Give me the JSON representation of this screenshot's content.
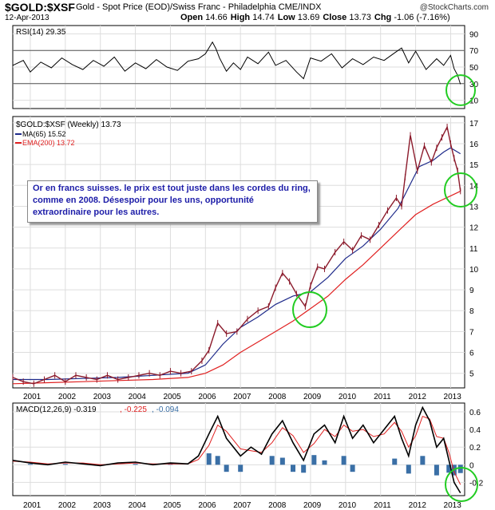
{
  "header": {
    "symbol": "$GOLD:$XSF",
    "description": "Gold - Spot Price (EOD)/Swiss Franc - Philadelphia CME/INDX",
    "date": "12-Apr-2013",
    "brand": "@StockCharts.com",
    "ohlc": [
      {
        "label": "Open",
        "value": "14.66"
      },
      {
        "label": "High",
        "value": "14.74"
      },
      {
        "label": "Low",
        "value": "13.69"
      },
      {
        "label": "Close",
        "value": "13.73"
      },
      {
        "label": "Chg",
        "value": "-1.06 (-7.16%)"
      }
    ]
  },
  "annotation": {
    "text": "Or en francs suisses. le prix est tout juste dans les cordes du ring, comme en 2008. Désespoir pour les uns, opportunité extraordinaire pour les autres."
  },
  "colors": {
    "price": "#8b1a2b",
    "ma": "#1e2a8a",
    "ema": "#e02020",
    "rsi": "#000000",
    "macd_signal": "#e02020",
    "histogram": "#3a6fa6",
    "circle": "#22cc22"
  },
  "chart_data": [
    {
      "type": "line",
      "title": "RSI(14) 29.35",
      "legend": [
        {
          "text": "RSI(14) 29.35"
        }
      ],
      "ylim": [
        0,
        100
      ],
      "y_ticks": [
        10,
        30,
        50,
        70,
        90
      ],
      "reference_lines": [
        30,
        70
      ],
      "series": [
        {
          "x": [
            2000.5,
            2000.8,
            2001.0,
            2001.3,
            2001.6,
            2001.9,
            2002.2,
            2002.5,
            2002.8,
            2003.1,
            2003.4,
            2003.7,
            2004.0,
            2004.3,
            2004.6,
            2004.9,
            2005.2,
            2005.5,
            2005.8,
            2006.0,
            2006.2,
            2006.3,
            2006.4,
            2006.6,
            2006.8,
            2007.0,
            2007.2,
            2007.5,
            2007.8,
            2008.0,
            2008.3,
            2008.6,
            2008.8,
            2009.0,
            2009.3,
            2009.6,
            2009.9,
            2010.2,
            2010.5,
            2010.8,
            2011.1,
            2011.4,
            2011.6,
            2011.8,
            2012.0,
            2012.3,
            2012.6,
            2012.8,
            2013.0,
            2013.1,
            2013.2,
            2013.28
          ],
          "y": [
            52,
            58,
            44,
            56,
            49,
            61,
            53,
            47,
            58,
            51,
            62,
            45,
            55,
            48,
            59,
            50,
            46,
            57,
            60,
            66,
            80,
            72,
            61,
            45,
            55,
            47,
            62,
            54,
            68,
            52,
            58,
            44,
            36,
            61,
            57,
            66,
            49,
            60,
            53,
            62,
            58,
            67,
            73,
            55,
            69,
            47,
            60,
            52,
            64,
            48,
            40,
            29.35
          ]
        }
      ]
    },
    {
      "type": "line",
      "title": "$GOLD:$XSF (Weekly) 13.73",
      "legend": [
        {
          "text": "$GOLD:$XSF (Weekly) 13.73"
        },
        {
          "text": "MA(65) 15.52"
        },
        {
          "text": "EMA(200) 13.72"
        }
      ],
      "ylim": [
        4.3,
        17.3
      ],
      "y_ticks": [
        5,
        6,
        7,
        8,
        9,
        10,
        11,
        12,
        13,
        14,
        15,
        16,
        17
      ],
      "x_ticks": [
        "2001",
        "2002",
        "2003",
        "2004",
        "2005",
        "2006",
        "2007",
        "2008",
        "2009",
        "2010",
        "2011",
        "2012",
        "2013"
      ],
      "series": [
        {
          "x": [
            2000.5,
            2000.8,
            2001.1,
            2001.4,
            2001.7,
            2002.0,
            2002.3,
            2002.6,
            2002.9,
            2003.2,
            2003.5,
            2003.8,
            2004.1,
            2004.4,
            2004.7,
            2005.0,
            2005.3,
            2005.6,
            2005.9,
            2006.1,
            2006.35,
            2006.6,
            2006.9,
            2007.2,
            2007.5,
            2007.8,
            2008.0,
            2008.2,
            2008.4,
            2008.6,
            2008.85,
            2009.0,
            2009.2,
            2009.4,
            2009.7,
            2009.95,
            2010.2,
            2010.45,
            2010.7,
            2010.95,
            2011.2,
            2011.45,
            2011.6,
            2011.7,
            2011.85,
            2012.05,
            2012.25,
            2012.45,
            2012.6,
            2012.75,
            2012.9,
            2013.0,
            2013.1,
            2013.2,
            2013.28
          ],
          "y": [
            4.8,
            4.6,
            4.5,
            4.7,
            4.9,
            4.6,
            4.9,
            4.8,
            4.7,
            4.9,
            4.7,
            4.8,
            4.9,
            5.0,
            4.9,
            5.1,
            5.0,
            5.1,
            5.6,
            6.1,
            7.4,
            6.9,
            7.0,
            7.6,
            8.0,
            8.2,
            9.1,
            9.8,
            9.4,
            8.8,
            8.2,
            9.2,
            10.1,
            10.0,
            10.8,
            11.3,
            10.9,
            11.6,
            11.4,
            12.1,
            12.8,
            13.4,
            13.0,
            14.4,
            16.4,
            14.7,
            15.9,
            15.1,
            15.8,
            16.3,
            16.8,
            16.0,
            15.3,
            14.7,
            13.73
          ]
        },
        {
          "x": [
            2000.5,
            2001.5,
            2002.5,
            2003.5,
            2004.5,
            2005.5,
            2006.0,
            2006.5,
            2007.0,
            2007.5,
            2008.0,
            2008.5,
            2009.0,
            2009.5,
            2010.0,
            2010.5,
            2011.0,
            2011.5,
            2011.8,
            2012.1,
            2012.5,
            2012.8,
            2013.0,
            2013.28
          ],
          "y": [
            4.7,
            4.7,
            4.75,
            4.8,
            4.9,
            5.0,
            5.4,
            6.4,
            7.2,
            7.7,
            8.3,
            8.7,
            8.9,
            9.6,
            10.5,
            11.1,
            11.9,
            12.9,
            13.9,
            14.9,
            15.2,
            15.6,
            15.8,
            15.52
          ]
        },
        {
          "x": [
            2000.5,
            2001.5,
            2002.5,
            2003.5,
            2004.5,
            2005.5,
            2006.0,
            2006.5,
            2007.0,
            2007.5,
            2008.0,
            2008.5,
            2009.0,
            2009.5,
            2010.0,
            2010.5,
            2011.0,
            2011.5,
            2012.0,
            2012.5,
            2013.0,
            2013.28
          ],
          "y": [
            4.5,
            4.55,
            4.6,
            4.65,
            4.7,
            4.8,
            5.0,
            5.4,
            6.0,
            6.5,
            7.0,
            7.5,
            8.1,
            8.7,
            9.5,
            10.2,
            11.0,
            11.8,
            12.6,
            13.1,
            13.5,
            13.72
          ]
        }
      ]
    },
    {
      "type": "line",
      "title": "MACD(12,26,9) -0.319, -0.225, -0.094",
      "legend": [
        {
          "text": "MACD(12,26,9) -0.319"
        },
        {
          "text": ", -0.225"
        },
        {
          "text": ", -0.094"
        }
      ],
      "ylim": [
        -0.35,
        0.7
      ],
      "y_ticks": [
        -0.2,
        0.0,
        0.2,
        0.4,
        0.6
      ],
      "x_ticks": [
        "2001",
        "2002",
        "2003",
        "2004",
        "2005",
        "2006",
        "2007",
        "2008",
        "2009",
        "2010",
        "2011",
        "2012",
        "2013"
      ],
      "series": [
        {
          "x": [
            2000.5,
            2001.0,
            2001.5,
            2002.0,
            2002.5,
            2003.0,
            2003.5,
            2004.0,
            2004.5,
            2005.0,
            2005.5,
            2005.8,
            2006.1,
            2006.35,
            2006.6,
            2007.0,
            2007.3,
            2007.6,
            2007.9,
            2008.2,
            2008.5,
            2008.8,
            2009.1,
            2009.4,
            2009.7,
            2009.95,
            2010.2,
            2010.5,
            2010.8,
            2011.1,
            2011.4,
            2011.6,
            2011.8,
            2012.0,
            2012.2,
            2012.4,
            2012.6,
            2012.8,
            2012.95,
            2013.1,
            2013.28
          ],
          "y": [
            0.05,
            0.02,
            0.0,
            0.03,
            0.01,
            -0.01,
            0.02,
            0.03,
            0.0,
            0.02,
            0.01,
            0.1,
            0.35,
            0.55,
            0.3,
            0.1,
            0.2,
            0.12,
            0.35,
            0.5,
            0.25,
            0.05,
            0.35,
            0.45,
            0.25,
            0.55,
            0.3,
            0.45,
            0.25,
            0.4,
            0.55,
            0.3,
            0.1,
            0.45,
            0.65,
            0.5,
            0.2,
            0.3,
            0.05,
            -0.2,
            -0.319
          ]
        },
        {
          "x": [
            2000.5,
            2001.0,
            2001.5,
            2002.0,
            2002.5,
            2003.0,
            2003.5,
            2004.0,
            2004.5,
            2005.0,
            2005.5,
            2005.8,
            2006.1,
            2006.35,
            2006.6,
            2007.0,
            2007.3,
            2007.6,
            2007.9,
            2008.2,
            2008.5,
            2008.8,
            2009.1,
            2009.4,
            2009.7,
            2009.95,
            2010.2,
            2010.5,
            2010.8,
            2011.1,
            2011.4,
            2011.6,
            2011.8,
            2012.0,
            2012.2,
            2012.4,
            2012.6,
            2012.8,
            2012.95,
            2013.1,
            2013.28
          ],
          "y": [
            0.04,
            0.03,
            0.01,
            0.02,
            0.02,
            0.0,
            0.01,
            0.02,
            0.01,
            0.01,
            0.01,
            0.06,
            0.22,
            0.45,
            0.38,
            0.18,
            0.16,
            0.14,
            0.25,
            0.42,
            0.33,
            0.14,
            0.24,
            0.4,
            0.32,
            0.45,
            0.38,
            0.4,
            0.32,
            0.35,
            0.48,
            0.38,
            0.2,
            0.33,
            0.55,
            0.52,
            0.32,
            0.3,
            0.14,
            -0.08,
            -0.225
          ]
        }
      ],
      "histogram": {
        "x": [
          2001.0,
          2002.0,
          2003.0,
          2004.0,
          2005.0,
          2006.1,
          2006.35,
          2006.6,
          2007.0,
          2007.9,
          2008.2,
          2008.5,
          2008.8,
          2009.1,
          2009.4,
          2009.95,
          2010.2,
          2011.4,
          2011.8,
          2012.2,
          2012.6,
          2012.95,
          2013.1,
          2013.28
        ],
        "y": [
          0.01,
          0.01,
          -0.01,
          0.01,
          0.01,
          0.13,
          0.1,
          -0.08,
          -0.08,
          0.1,
          0.08,
          -0.08,
          -0.09,
          0.11,
          0.05,
          0.1,
          -0.08,
          0.07,
          -0.1,
          0.1,
          -0.12,
          -0.09,
          -0.12,
          -0.094
        ]
      }
    }
  ]
}
